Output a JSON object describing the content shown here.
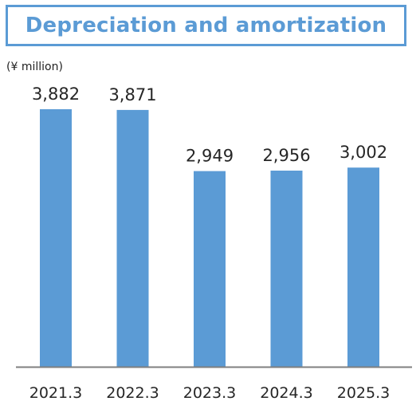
{
  "chart_data": {
    "type": "bar",
    "title": "Depreciation and amortization",
    "unit": "(¥ million)",
    "categories": [
      "2021.3",
      "2022.3",
      "2023.3",
      "2024.3",
      "2025.3"
    ],
    "values": [
      3882,
      3871,
      2949,
      2956,
      3002
    ],
    "value_labels": [
      "3,882",
      "3,871",
      "2,949",
      "2,956",
      "3,002"
    ],
    "xlabel": "",
    "ylabel": "",
    "ylim": [
      0,
      3882
    ],
    "grid": false,
    "legend": "none",
    "bar_color": "#5b9bd5",
    "title_color": "#5b9bd5",
    "axis_color": "#7f7f7f"
  }
}
